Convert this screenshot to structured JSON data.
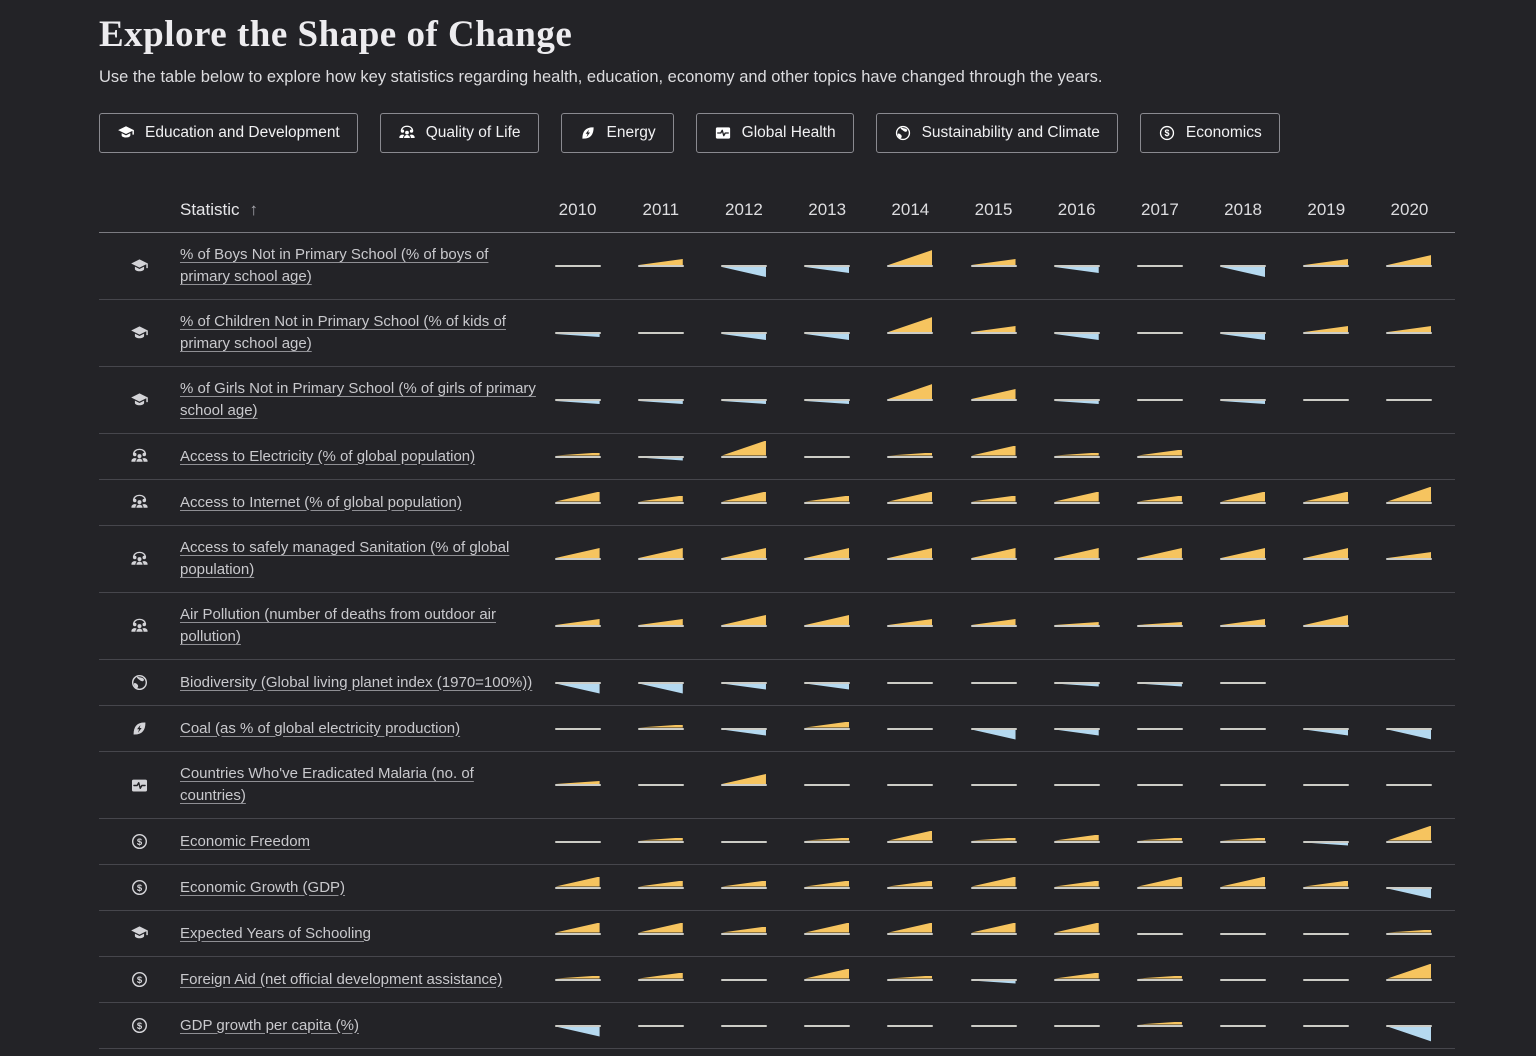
{
  "header": {
    "title": "Explore the Shape of Change",
    "subtitle": "Use the table below to explore how key statistics regarding health, education, economy and other topics have changed through the years."
  },
  "filters": {
    "buttons": [
      {
        "label": "Education and Development",
        "icon": "education-icon"
      },
      {
        "label": "Quality of Life",
        "icon": "people-icon"
      },
      {
        "label": "Energy",
        "icon": "energy-leaf-icon"
      },
      {
        "label": "Global Health",
        "icon": "health-pulse-icon"
      },
      {
        "label": "Sustainability and Climate",
        "icon": "globe-icon"
      },
      {
        "label": "Economics",
        "icon": "dollar-icon"
      }
    ]
  },
  "colors": {
    "increase": "#f6c45f",
    "decrease": "#b5d9f0",
    "baseline": "#ccccc6",
    "background": "#232327"
  },
  "table": {
    "statistic_header": "Statistic",
    "sort_arrow": "↑",
    "sort_direction": "ascending",
    "years": [
      "2010",
      "2011",
      "2012",
      "2013",
      "2014",
      "2015",
      "2016",
      "2017",
      "2018",
      "2019",
      "2020"
    ],
    "cell_legend": {
      "u": "increase wedge (yellow)",
      "d": "decrease wedge (blue)",
      "f": "flat line",
      "sizes": {
        "1": "tiny",
        "2": "small",
        "3": "medium",
        "4": "large"
      }
    },
    "rows": [
      {
        "icon": "education-icon",
        "label": "% of Boys Not in Primary School (% of boys of primary school age)",
        "cells": [
          "f",
          "u2",
          "d3",
          "d2",
          "u4",
          "u2",
          "d2",
          "f",
          "d3",
          "u2",
          "u3"
        ]
      },
      {
        "icon": "education-icon",
        "label": "% of Children Not in Primary School (% of kids of primary school age)",
        "cells": [
          "d1",
          "f",
          "d2",
          "d2",
          "u4",
          "u2",
          "d2",
          "f",
          "d2",
          "u2",
          "u2"
        ]
      },
      {
        "icon": "education-icon",
        "label": "% of Girls Not in Primary School (% of girls of primary school age)",
        "cells": [
          "d1",
          "d1",
          "d1",
          "d1",
          "u4",
          "u3",
          "d1",
          "f",
          "d1",
          "f",
          "f"
        ]
      },
      {
        "icon": "people-icon",
        "label": "Access to Electricity (% of global population)",
        "cells": [
          "u1",
          "d1",
          "u4",
          "f",
          "u1",
          "u3",
          "u1",
          "u2",
          "",
          "",
          ""
        ]
      },
      {
        "icon": "people-icon",
        "label": "Access to Internet (% of global population)",
        "cells": [
          "u3",
          "u2",
          "u3",
          "u2",
          "u3",
          "u2",
          "u3",
          "u2",
          "u3",
          "u3",
          "u4"
        ]
      },
      {
        "icon": "people-icon",
        "label": "Access to safely managed Sanitation (% of global population)",
        "cells": [
          "u3",
          "u3",
          "u3",
          "u3",
          "u3",
          "u3",
          "u3",
          "u3",
          "u3",
          "u3",
          "u2"
        ]
      },
      {
        "icon": "people-icon",
        "label": "Air Pollution (number of deaths from outdoor air pollution)",
        "cells": [
          "u2",
          "u2",
          "u3",
          "u3",
          "u2",
          "u2",
          "u1",
          "u1",
          "u2",
          "u3",
          ""
        ]
      },
      {
        "icon": "globe-icon",
        "label": "Biodiversity (Global living planet index (1970=100%))",
        "cells": [
          "d3",
          "d3",
          "d2",
          "d2",
          "f",
          "f",
          "d1",
          "d1",
          "f",
          "",
          ""
        ]
      },
      {
        "icon": "energy-leaf-icon",
        "label": "Coal (as % of global electricity production)",
        "cells": [
          "f",
          "u1",
          "d2",
          "u2",
          "f",
          "d3",
          "d2",
          "f",
          "f",
          "d2",
          "d3"
        ]
      },
      {
        "icon": "health-pulse-icon",
        "label": "Countries Who've Eradicated Malaria (no. of countries)",
        "cells": [
          "u1",
          "f",
          "u3",
          "f",
          "f",
          "f",
          "f",
          "f",
          "f",
          "f",
          "f"
        ]
      },
      {
        "icon": "dollar-icon",
        "label": "Economic Freedom",
        "cells": [
          "f",
          "u1",
          "f",
          "u1",
          "u3",
          "u1",
          "u2",
          "u1",
          "u1",
          "d1",
          "u4"
        ]
      },
      {
        "icon": "dollar-icon",
        "label": "Economic Growth (GDP)",
        "cells": [
          "u3",
          "u2",
          "u2",
          "u2",
          "u2",
          "u3",
          "u2",
          "u3",
          "u3",
          "u2",
          "d3"
        ]
      },
      {
        "icon": "education-icon",
        "label": "Expected Years of Schooling",
        "cells": [
          "u3",
          "u3",
          "u2",
          "u3",
          "u3",
          "u3",
          "u3",
          "f",
          "f",
          "f",
          "u1"
        ]
      },
      {
        "icon": "dollar-icon",
        "label": "Foreign Aid (net official development assistance)",
        "cells": [
          "u1",
          "u2",
          "f",
          "u3",
          "u1",
          "d1",
          "u2",
          "u1",
          "f",
          "f",
          "u4"
        ]
      },
      {
        "icon": "dollar-icon",
        "label": "GDP growth per capita (%)",
        "cells": [
          "d3",
          "f",
          "f",
          "f",
          "f",
          "f",
          "f",
          "u1",
          "f",
          "f",
          "d4"
        ]
      }
    ]
  }
}
